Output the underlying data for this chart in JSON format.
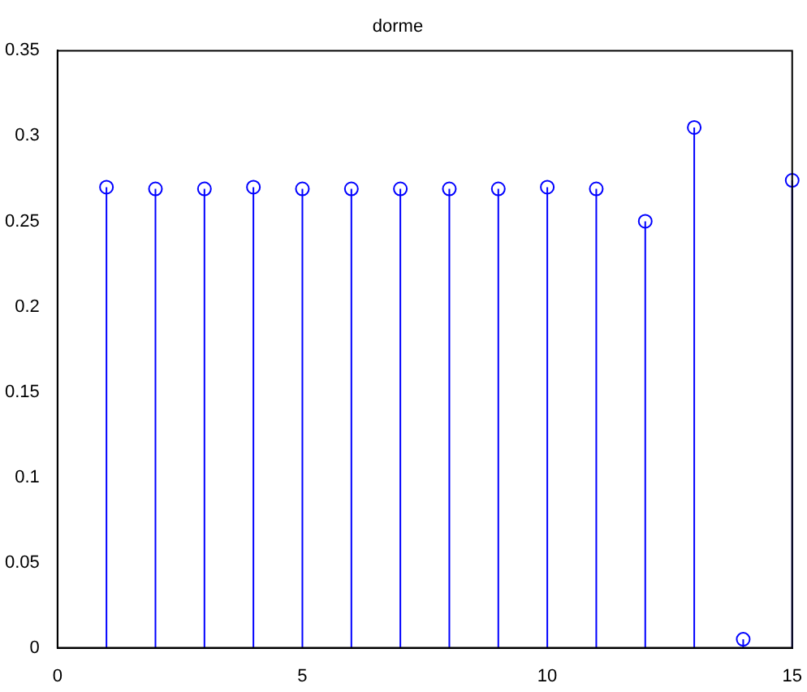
{
  "chart_data": {
    "type": "lollipop",
    "title": "dorme",
    "x": [
      1,
      2,
      3,
      4,
      5,
      6,
      7,
      8,
      9,
      10,
      11,
      12,
      13,
      14,
      15
    ],
    "values": [
      0.27,
      0.269,
      0.269,
      0.27,
      0.269,
      0.269,
      0.269,
      0.269,
      0.269,
      0.27,
      0.269,
      0.25,
      0.305,
      0.005,
      0.274
    ],
    "color": "#0000ff",
    "marker": "circle",
    "xlim": [
      0,
      15
    ],
    "xticks": [
      0,
      5,
      10,
      15
    ],
    "ylim": [
      0,
      0.35
    ],
    "yticks": [
      0,
      0.05,
      0.1,
      0.15,
      0.2,
      0.25,
      0.3,
      0.35
    ]
  }
}
